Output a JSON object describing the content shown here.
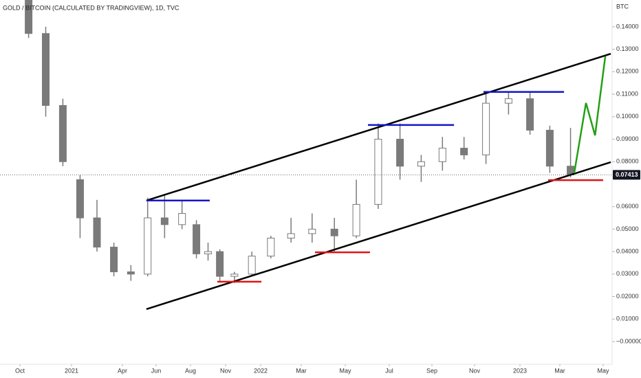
{
  "chart_data": {
    "type": "candlestick",
    "title": "GOLD / BITCOIN (CALCULATED BY TRADINGVIEW), 1D, TVC",
    "y_unit": "BTC",
    "color": "#7a7a7a",
    "x": [
      2020.792,
      2020.875,
      2020.958,
      2021.042,
      2021.125,
      2021.208,
      2021.292,
      2021.375,
      2021.458,
      2021.542,
      2021.625,
      2021.708,
      2021.792,
      2021.875,
      2021.958,
      2022.042,
      2022.125,
      2022.208,
      2022.292,
      2022.375,
      2022.458,
      2022.542,
      2022.625,
      2022.708,
      2022.792,
      2022.875,
      2022.958,
      2023.042,
      2023.125,
      2023.208
    ],
    "open": [
      0.152,
      0.137,
      0.105,
      0.072,
      0.055,
      0.042,
      0.031,
      0.03,
      0.055,
      0.052,
      0.052,
      0.039,
      0.04,
      0.029,
      0.03,
      0.038,
      0.046,
      0.048,
      0.05,
      0.047,
      0.061,
      0.09,
      0.078,
      0.08,
      0.086,
      0.083,
      0.106,
      0.108,
      0.094,
      0.078
    ],
    "high": [
      0.152,
      0.14,
      0.108,
      0.074,
      0.063,
      0.044,
      0.034,
      0.064,
      0.065,
      0.063,
      0.054,
      0.044,
      0.041,
      0.031,
      0.04,
      0.047,
      0.055,
      0.057,
      0.055,
      0.072,
      0.097,
      0.097,
      0.083,
      0.091,
      0.091,
      0.111,
      0.111,
      0.111,
      0.096,
      0.095
    ],
    "low": [
      0.135,
      0.1,
      0.078,
      0.046,
      0.04,
      0.029,
      0.027,
      0.029,
      0.046,
      0.05,
      0.037,
      0.036,
      0.027,
      0.026,
      0.029,
      0.037,
      0.044,
      0.044,
      0.04,
      0.046,
      0.059,
      0.072,
      0.071,
      0.076,
      0.081,
      0.079,
      0.101,
      0.092,
      0.075,
      0.073
    ],
    "close": [
      0.137,
      0.105,
      0.08,
      0.055,
      0.042,
      0.031,
      0.03,
      0.055,
      0.052,
      0.057,
      0.039,
      0.04,
      0.029,
      0.03,
      0.038,
      0.046,
      0.048,
      0.05,
      0.047,
      0.061,
      0.09,
      0.078,
      0.08,
      0.086,
      0.083,
      0.106,
      0.108,
      0.094,
      0.078,
      0.0741
    ],
    "last_price": {
      "value": 0.07413,
      "label": "0.07413"
    },
    "xlim": [
      2020.653,
      2023.367
    ],
    "xticks": [
      {
        "value": 2020.75,
        "label": "Oct"
      },
      {
        "value": 2021,
        "label": "2021"
      },
      {
        "value": 2021.25,
        "label": "Apr"
      },
      {
        "value": 2021.417,
        "label": "Jun"
      },
      {
        "value": 2021.583,
        "label": "Aug"
      },
      {
        "value": 2021.833,
        "label": "Nov"
      },
      {
        "value": 2022,
        "label": "2022"
      },
      {
        "value": 2022.167,
        "label": "Mar"
      },
      {
        "value": 2022.333,
        "label": "May"
      },
      {
        "value": 2022.5,
        "label": "Jul"
      },
      {
        "value": 2022.667,
        "label": "Sep"
      },
      {
        "value": 2022.833,
        "label": "Nov"
      },
      {
        "value": 2023,
        "label": "2023"
      },
      {
        "value": 2023.167,
        "label": "Mar"
      },
      {
        "value": 2023.333,
        "label": "May"
      }
    ],
    "ylim": [
      -0.0101,
      0.1519
    ],
    "yticks": [
      {
        "value": 0.14,
        "label": "0.14000"
      },
      {
        "value": 0.13,
        "label": "0.13000"
      },
      {
        "value": 0.12,
        "label": "0.12000"
      },
      {
        "value": 0.11,
        "label": "0.11000"
      },
      {
        "value": 0.1,
        "label": "0.10000"
      },
      {
        "value": 0.09,
        "label": "0.09000"
      },
      {
        "value": 0.08,
        "label": "0.08000"
      },
      {
        "value": 0.06,
        "label": "0.06000"
      },
      {
        "value": 0.05,
        "label": "0.05000"
      },
      {
        "value": 0.04,
        "label": "0.04000"
      },
      {
        "value": 0.03,
        "label": "0.03000"
      },
      {
        "value": 0.02,
        "label": "0.02000"
      },
      {
        "value": 0.01,
        "label": "0.01000"
      },
      {
        "value": 0,
        "label": "−0.00000"
      }
    ],
    "lines": [
      {
        "color": "#000000",
        "x": [
          2021.369,
          2023.362
        ],
        "y": [
          0.0627,
          0.128
        ]
      },
      {
        "color": "#000000",
        "x": [
          2021.369,
          2023.362
        ],
        "y": [
          0.0144,
          0.0798
        ]
      },
      {
        "color": "#1414c8",
        "x": [
          2021.369,
          2021.72
        ],
        "y": [
          0.0627,
          0.0627
        ]
      },
      {
        "color": "#1414c8",
        "x": [
          2022.419,
          2022.753
        ],
        "y": [
          0.0963,
          0.0963
        ]
      },
      {
        "color": "#1414c8",
        "x": [
          2022.866,
          2023.183
        ],
        "y": [
          0.111,
          0.111
        ]
      },
      {
        "color": "#e01414",
        "x": [
          2021.774,
          2022.003
        ],
        "y": [
          0.0266,
          0.0266
        ]
      },
      {
        "color": "#e01414",
        "x": [
          2022.219,
          2022.427
        ],
        "y": [
          0.0397,
          0.0397
        ]
      },
      {
        "color": "#e01414",
        "x": [
          2023.118,
          2023.333
        ],
        "y": [
          0.0718,
          0.0718
        ]
      },
      {
        "color": "#22a014",
        "x": [
          2023.222,
          2023.267,
          2023.302,
          2023.341
        ],
        "y": [
          0.0749,
          0.1061,
          0.0917,
          0.1269
        ]
      }
    ]
  }
}
